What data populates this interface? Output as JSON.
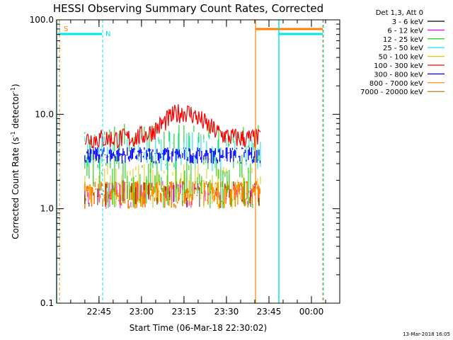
{
  "chart_data": {
    "type": "line",
    "title": "HESSI Observing Summary Count Rates, Corrected",
    "xlabel": "Start Time (06-Mar-18 22:30:02)",
    "ylabel": "Corrected Count Rate (s",
    "ylabel_sup": "-1",
    "ylabel_mid": " detector",
    "ylabel_end": ")",
    "y_scale": "log",
    "ylim": [
      0.1,
      100.0
    ],
    "y_ticks": [
      "0.1",
      "1.0",
      "10.0",
      "100.0"
    ],
    "x_range": [
      "22:30:02",
      "00:10:00"
    ],
    "x_ticks": [
      "22:45",
      "23:00",
      "23:15",
      "23:30",
      "23:45",
      "00:00"
    ],
    "grid": false,
    "legend_title": "Det 1,3, Att 0",
    "legend_position": "right",
    "series": [
      {
        "name": "3 - 6 keV",
        "color": "#000000"
      },
      {
        "name": "6 - 12 keV",
        "color": "#ff00ff"
      },
      {
        "name": "12 - 25 keV",
        "color": "#00cc00"
      },
      {
        "name": "25 - 50 keV",
        "color": "#00e5e5"
      },
      {
        "name": "50 - 100 keV",
        "color": "#e6c800"
      },
      {
        "name": "100 - 300 keV",
        "color": "#ff0000"
      },
      {
        "name": "300 - 800 keV",
        "color": "#0000ff"
      },
      {
        "name": "800 - 7000 keV",
        "color": "#ff8000"
      },
      {
        "name": "7000 - 20000 keV",
        "color": "#b07000"
      }
    ],
    "orbit_flags": [
      {
        "label": "S",
        "color": "#ff8000"
      },
      {
        "label": "N",
        "color": "#00e5e5"
      }
    ],
    "data_interval": [
      "22:40",
      "23:42"
    ],
    "approx_levels": {
      "100 - 300 keV": {
        "min": 5.5,
        "peak": 10.5,
        "peak_time": "23:15"
      },
      "300 - 800 keV": {
        "min": 3.0,
        "max": 4.5
      },
      "12 - 25 keV": {
        "min": 1.0,
        "max": 8.0
      },
      "800 - 7000 keV": {
        "min": 1.0,
        "max": 2.0
      }
    },
    "footer_date": "13-Mar-2018 16:05"
  }
}
